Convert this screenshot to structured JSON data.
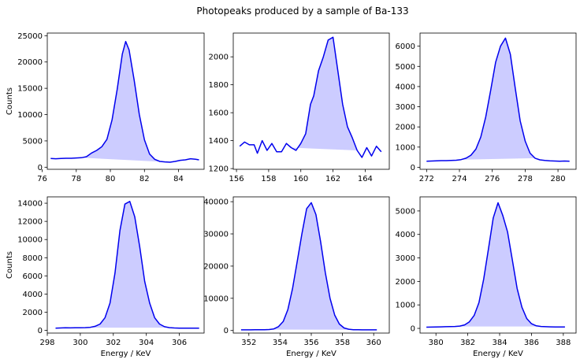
{
  "figure": {
    "suptitle": "Photopeaks produced by a sample of Ba-133",
    "line_color": "#0000ee",
    "fill_color": "#ccccff"
  },
  "chart_data": [
    {
      "type": "area",
      "title": "",
      "xlabel": "",
      "ylabel": "Counts",
      "xlim": [
        76.3,
        85.5
      ],
      "ylim": [
        -400,
        25500
      ],
      "xticks": [
        76,
        78,
        80,
        82,
        84
      ],
      "xtick_labels": [
        "76",
        "78",
        "80",
        "82",
        "84"
      ],
      "yticks": [
        0,
        5000,
        10000,
        15000,
        20000,
        25000
      ],
      "ytick_labels": [
        "0",
        "5000",
        "10000",
        "15000",
        "20000",
        "25000"
      ],
      "x": [
        76.5,
        76.8,
        77.1,
        77.4,
        77.7,
        78.0,
        78.3,
        78.6,
        78.9,
        79.2,
        79.5,
        79.8,
        80.1,
        80.4,
        80.7,
        80.9,
        81.1,
        81.4,
        81.7,
        82.0,
        82.3,
        82.6,
        82.9,
        83.2,
        83.5,
        83.8,
        84.1,
        84.4,
        84.7,
        85.0,
        85.2
      ],
      "y": [
        1650,
        1600,
        1650,
        1700,
        1700,
        1750,
        1800,
        2000,
        2700,
        3200,
        3900,
        5300,
        9000,
        14800,
        21500,
        23900,
        22300,
        16500,
        10000,
        5200,
        2500,
        1500,
        1100,
        1000,
        950,
        1100,
        1300,
        1400,
        1600,
        1500,
        1400
      ],
      "peak_region": [
        78.3,
        83.4
      ]
    },
    {
      "type": "area",
      "title": "",
      "xlabel": "",
      "ylabel": "",
      "xlim": [
        155.8,
        165.5
      ],
      "ylim": [
        1195,
        2170
      ],
      "xticks": [
        156,
        158,
        160,
        162,
        164
      ],
      "xtick_labels": [
        "156",
        "158",
        "160",
        "162",
        "164"
      ],
      "yticks": [
        1200,
        1400,
        1600,
        1800,
        2000
      ],
      "ytick_labels": [
        "1200",
        "1400",
        "1600",
        "1800",
        "2000"
      ],
      "x": [
        156.2,
        156.5,
        156.8,
        157.1,
        157.3,
        157.6,
        157.9,
        158.2,
        158.5,
        158.8,
        159.1,
        159.4,
        159.7,
        160.0,
        160.3,
        160.6,
        160.8,
        161.1,
        161.4,
        161.7,
        162.0,
        162.3,
        162.6,
        162.9,
        163.2,
        163.5,
        163.8,
        164.1,
        164.4,
        164.7,
        165.0
      ],
      "y": [
        1360,
        1390,
        1370,
        1370,
        1310,
        1400,
        1330,
        1380,
        1320,
        1320,
        1380,
        1350,
        1330,
        1380,
        1450,
        1660,
        1720,
        1900,
        2000,
        2120,
        2140,
        1900,
        1660,
        1500,
        1420,
        1330,
        1280,
        1350,
        1290,
        1360,
        1320
      ],
      "peak_region": [
        159.4,
        163.5
      ]
    },
    {
      "type": "area",
      "title": "",
      "xlabel": "",
      "ylabel": "",
      "xlim": [
        271.6,
        281.1
      ],
      "ylim": [
        -100,
        6650
      ],
      "xticks": [
        272,
        274,
        276,
        278,
        280
      ],
      "xtick_labels": [
        "272",
        "274",
        "276",
        "278",
        "280"
      ],
      "yticks": [
        0,
        1000,
        2000,
        3000,
        4000,
        5000,
        6000
      ],
      "ytick_labels": [
        "0",
        "1000",
        "2000",
        "3000",
        "4000",
        "5000",
        "6000"
      ],
      "x": [
        272.0,
        272.3,
        272.6,
        272.9,
        273.2,
        273.5,
        273.8,
        274.1,
        274.4,
        274.7,
        275.0,
        275.3,
        275.6,
        275.9,
        276.2,
        276.5,
        276.8,
        277.1,
        277.4,
        277.7,
        278.0,
        278.3,
        278.6,
        278.9,
        279.2,
        279.5,
        279.8,
        280.1,
        280.4,
        280.7
      ],
      "y": [
        300,
        310,
        320,
        330,
        330,
        340,
        350,
        380,
        450,
        600,
        900,
        1500,
        2500,
        3800,
        5200,
        6000,
        6400,
        5600,
        3900,
        2300,
        1300,
        700,
        450,
        370,
        340,
        320,
        310,
        300,
        310,
        300
      ],
      "peak_region": [
        273.9,
        278.7
      ]
    },
    {
      "type": "area",
      "title": "",
      "xlabel": "Energy / KeV",
      "ylabel": "Counts",
      "xlim": [
        298,
        307.5
      ],
      "ylim": [
        -300,
        14700
      ],
      "xticks": [
        298,
        300,
        302,
        304,
        306
      ],
      "xtick_labels": [
        "298",
        "300",
        "302",
        "304",
        "306"
      ],
      "yticks": [
        0,
        2000,
        4000,
        6000,
        8000,
        10000,
        12000,
        14000
      ],
      "ytick_labels": [
        "0",
        "2000",
        "4000",
        "6000",
        "8000",
        "10000",
        "12000",
        "14000"
      ],
      "x": [
        298.5,
        298.8,
        299.1,
        299.4,
        299.7,
        300.0,
        300.3,
        300.6,
        300.9,
        301.2,
        301.5,
        301.8,
        302.1,
        302.4,
        302.7,
        303.0,
        303.3,
        303.6,
        303.9,
        304.2,
        304.5,
        304.8,
        305.1,
        305.4,
        305.7,
        306.0,
        306.3,
        306.6,
        306.9,
        307.2
      ],
      "y": [
        250,
        260,
        280,
        270,
        280,
        290,
        300,
        330,
        450,
        700,
        1400,
        3000,
        6300,
        11000,
        13900,
        14200,
        12500,
        9200,
        5400,
        3000,
        1400,
        700,
        400,
        300,
        260,
        250,
        240,
        240,
        250,
        250
      ],
      "peak_region": [
        300.3,
        305.4
      ]
    },
    {
      "type": "area",
      "title": "",
      "xlabel": "Energy / KeV",
      "ylabel": "",
      "xlim": [
        351,
        361
      ],
      "ylim": [
        -800,
        41500
      ],
      "xticks": [
        352,
        354,
        356,
        358,
        360
      ],
      "xtick_labels": [
        "352",
        "354",
        "356",
        "358",
        "360"
      ],
      "yticks": [
        0,
        10000,
        20000,
        30000,
        40000
      ],
      "ytick_labels": [
        "0",
        "10000",
        "20000",
        "30000",
        "40000"
      ],
      "x": [
        351.5,
        351.8,
        352.1,
        352.4,
        352.7,
        353.0,
        353.3,
        353.6,
        353.9,
        354.2,
        354.5,
        354.8,
        355.1,
        355.4,
        355.7,
        356.0,
        356.3,
        356.6,
        356.9,
        357.2,
        357.5,
        357.8,
        358.1,
        358.4,
        358.7,
        359.0,
        359.3,
        359.6,
        359.9,
        360.2
      ],
      "y": [
        200,
        200,
        210,
        220,
        230,
        250,
        300,
        500,
        1200,
        2800,
        6500,
        13000,
        21500,
        30000,
        37800,
        39700,
        36000,
        27500,
        18000,
        10000,
        4800,
        2000,
        800,
        400,
        260,
        220,
        210,
        200,
        200,
        200
      ],
      "peak_region": [
        353.3,
        358.7
      ]
    },
    {
      "type": "area",
      "title": "",
      "xlabel": "Energy / KeV",
      "ylabel": "",
      "xlim": [
        379,
        388.8
      ],
      "ylim": [
        -200,
        5600
      ],
      "xticks": [
        380,
        382,
        384,
        386,
        388
      ],
      "xtick_labels": [
        "380",
        "382",
        "384",
        "386",
        "388"
      ],
      "yticks": [
        0,
        1000,
        2000,
        3000,
        4000,
        5000
      ],
      "ytick_labels": [
        "0",
        "1000",
        "2000",
        "3000",
        "4000",
        "5000"
      ],
      "x": [
        379.4,
        379.7,
        380.0,
        380.3,
        380.6,
        380.9,
        381.2,
        381.5,
        381.8,
        382.1,
        382.4,
        382.7,
        383.0,
        383.3,
        383.6,
        383.9,
        384.2,
        384.5,
        384.8,
        385.1,
        385.4,
        385.7,
        386.0,
        386.3,
        386.6,
        386.9,
        387.2,
        387.5,
        387.8,
        388.1
      ],
      "y": [
        50,
        55,
        60,
        65,
        70,
        75,
        80,
        100,
        150,
        280,
        550,
        1100,
        2100,
        3400,
        4700,
        5350,
        4800,
        4100,
        2900,
        1700,
        900,
        420,
        200,
        110,
        80,
        70,
        65,
        60,
        60,
        60
      ],
      "peak_region": [
        381.2,
        386.6
      ]
    }
  ]
}
